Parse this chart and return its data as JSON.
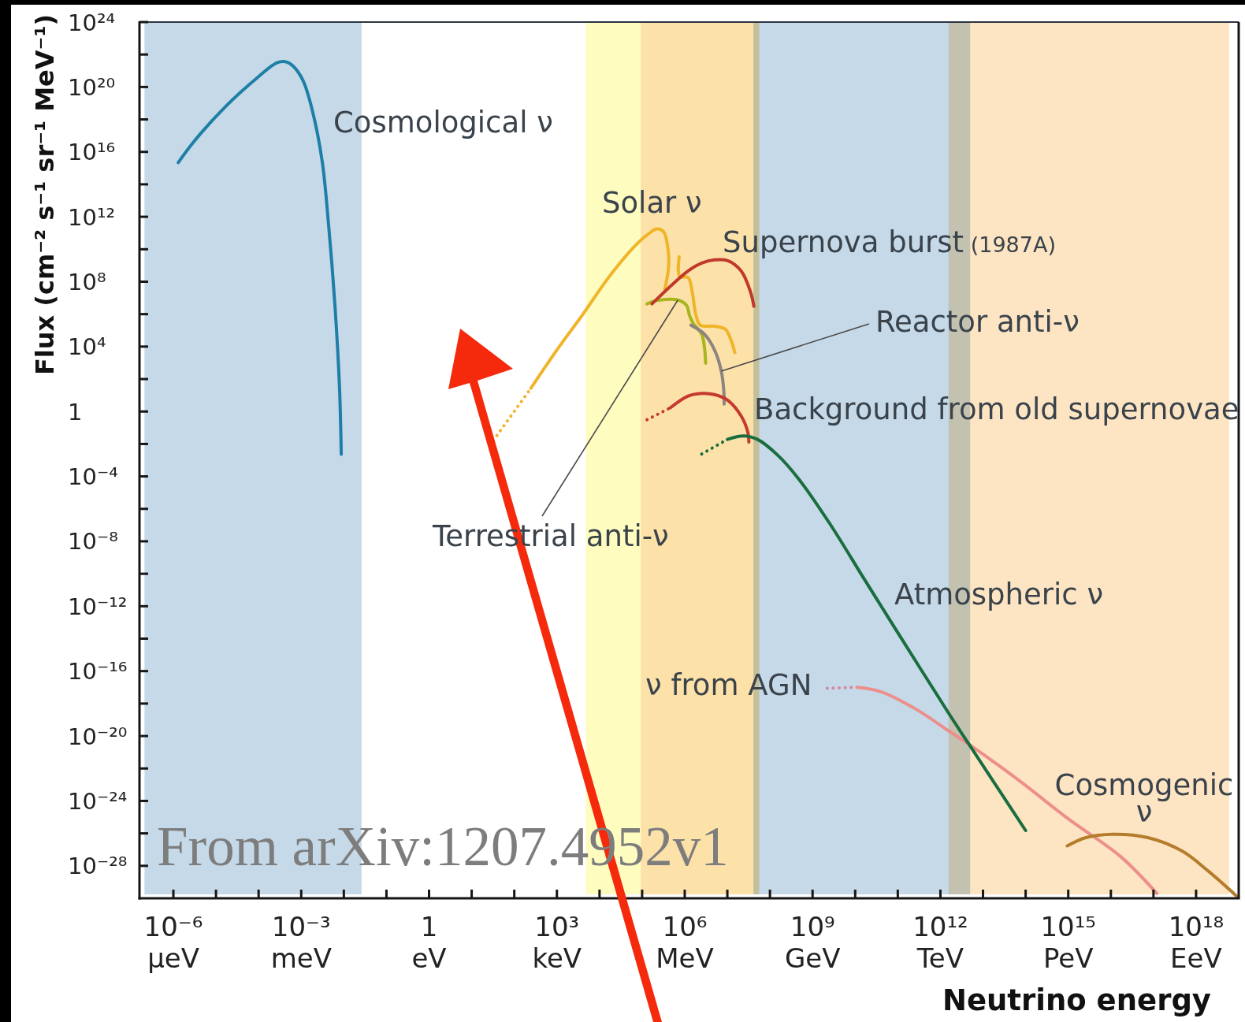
{
  "chart_data": {
    "type": "line",
    "xlabel": "Neutrino energy",
    "ylabel": "Flux (cm⁻² s⁻¹ sr⁻¹ MeV⁻¹)",
    "log": "xy",
    "xlim": [
      1.6e-07,
      1e+19
    ],
    "ylim": [
      1e-30,
      1e+24
    ],
    "xticks": [
      {
        "value": 1e-06,
        "label": "10⁻⁶"
      },
      {
        "value": 1e-05,
        "label": null
      },
      {
        "value": 0.0001,
        "label": null
      },
      {
        "value": 0.001,
        "label": "10⁻³"
      },
      {
        "value": 0.01,
        "label": null
      },
      {
        "value": 0.1,
        "label": null
      },
      1,
      {
        "value": 10,
        "label": null
      },
      {
        "value": 100,
        "label": null
      },
      {
        "value": 1000.0,
        "label": "10³"
      },
      {
        "value": 10000.0,
        "label": null
      },
      {
        "value": 100000.0,
        "label": null
      },
      {
        "value": 1000000.0,
        "label": "10⁶"
      },
      {
        "value": 10000000.0,
        "label": null
      },
      {
        "value": 100000000.0,
        "label": null
      },
      {
        "value": 1000000000.0,
        "label": "10⁹"
      },
      {
        "value": 10000000000.0,
        "label": null
      },
      {
        "value": 100000000000.0,
        "label": null
      },
      {
        "value": 1000000000000.0,
        "label": "10¹²"
      },
      {
        "value": 10000000000000.0,
        "label": null
      },
      {
        "value": 100000000000000.0,
        "label": null
      },
      {
        "value": 1000000000000000.0,
        "label": "10¹⁵"
      },
      {
        "value": 1e+16,
        "label": null
      },
      {
        "value": 1e+17,
        "label": null
      },
      {
        "value": 1e+18,
        "label": "10¹⁸"
      }
    ],
    "yticks": [
      {
        "value": 1e+24,
        "label": "10²⁴"
      },
      {
        "value": 1e+22,
        "label": null
      },
      {
        "value": 1e+20,
        "label": "10²⁰"
      },
      {
        "value": 1e+18,
        "label": null
      },
      {
        "value": 1e+16,
        "label": "10¹⁶"
      },
      {
        "value": 100000000000000.0,
        "label": null
      },
      {
        "value": 1000000000000.0,
        "label": "10¹²"
      },
      {
        "value": 10000000000.0,
        "label": null
      },
      {
        "value": 100000000.0,
        "label": "10⁸"
      },
      {
        "value": 1000000.0,
        "label": null
      },
      {
        "value": 10000.0,
        "label": "10⁴"
      },
      {
        "value": 100,
        "label": null
      },
      1,
      {
        "value": 0.01,
        "label": null
      },
      {
        "value": 0.0001,
        "label": "10⁻⁴"
      },
      {
        "value": 1e-06,
        "label": null
      },
      {
        "value": 1e-08,
        "label": "10⁻⁸"
      },
      {
        "value": 1e-10,
        "label": null
      },
      {
        "value": 1e-12,
        "label": "10⁻¹²"
      },
      {
        "value": 1e-14,
        "label": null
      },
      {
        "value": 1e-16,
        "label": "10⁻¹⁶"
      },
      {
        "value": 1e-18,
        "label": null
      },
      {
        "value": 1e-20,
        "label": "10⁻²⁰"
      },
      {
        "value": 1e-22,
        "label": null
      },
      {
        "value": 1e-24,
        "label": "10⁻²⁴"
      },
      {
        "value": 1e-26,
        "label": null
      },
      {
        "value": 1e-28,
        "label": "10⁻²⁸"
      }
    ],
    "bands": [
      {
        "axis": "x",
        "from": 2.1e-07,
        "to": 0.026,
        "color": "#c5d9e8"
      },
      {
        "axis": "x",
        "from": 4800,
        "to": 93000,
        "color": "#fefcbf"
      },
      {
        "axis": "x",
        "from": 93000,
        "to": 56000000.0,
        "color": "#fce1a9"
      },
      {
        "axis": "x",
        "from": 41000000.0,
        "to": 5000000000000.0,
        "color": "#c5d9e8"
      },
      {
        "axis": "x",
        "from": 1550000000000.0,
        "to": 6e+18,
        "color": "#fde4c3"
      }
    ],
    "annotations": [
      "From arXiv:1207.4952v1",
      "μeV",
      "meV",
      "eV",
      "keV",
      "MeV",
      "GeV",
      "TeV",
      "PeV",
      "EeV"
    ],
    "series": [
      {
        "name": "Cosmological ν",
        "color": "#1e7fa6",
        "x": [
          1.3e-06,
          3e-06,
          1.7e-05,
          9.5e-05,
          0.00027,
          0.00045,
          0.00065,
          0.0011,
          0.0018,
          0.0031,
          0.0044,
          0.0062,
          0.0079,
          0.0087
        ],
        "values": [
          2200000000000000.0,
          4.2e+16,
          6.5e+18,
          3.9e+20,
          3.1e+21,
          3.5e+21,
          1.9e+21,
          2.5e+20,
          4.1e+18,
          2700000000000000.0,
          290000000000.0,
          3100000.0,
          34,
          0.0023
        ]
      },
      {
        "color": "#f0b429",
        "line_style": "dotted",
        "x": [
          39,
          245
        ],
        "values": [
          0.033,
          27
        ]
      },
      {
        "name": "Solar ν",
        "color": "#f0b429",
        "x": [
          245,
          1000,
          4200,
          17000,
          72000,
          150000,
          220000,
          320000,
          400000,
          420000,
          340000,
          550000,
          740000,
          760000,
          1200000.0,
          1500000.0,
          1800000.0,
          2300000.0,
          5000000.0,
          8900000.0,
          12000000.0,
          15000000.0
        ],
        "values": [
          27,
          6200.0,
          1100000.0,
          210000000.0,
          19000000000.0,
          100000000000.0,
          180000000000.0,
          120000000000.0,
          13000000000.0,
          950000000.0,
          33000000.0,
          null,
          3500000000.0,
          210000000.0,
          180000000.0,
          23000000.0,
          1100000.0,
          210000.0,
          180000.0,
          120000.0,
          28000.0,
          4300.0
        ]
      },
      {
        "name": "Terrestrial anti-ν",
        "color": "#a9b51d",
        "x": [
          130000,
          220000,
          690000,
          1100000.0,
          1300000.0,
          1600000.0,
          2500000.0,
          2900000.0,
          3100000.0
        ],
        "values": [
          4300000.0,
          6900000.0,
          7400000.0,
          3500000.0,
          790000.0,
          260000.0,
          58000.0,
          8900.0,
          950
        ]
      },
      {
        "name": "Supernova burst (1987A)",
        "color": "#c0392b",
        "x": [
          170000,
          1200000.0,
          2500000.0,
          5000000.0,
          10000000.0,
          21000000.0,
          35000000.0,
          42000000.0
        ],
        "values": [
          4300000.0,
          460000000.0,
          1400000000.0,
          2200000000.0,
          2000000000.0,
          460000000.0,
          23000000.0,
          3000000.0
        ]
      },
      {
        "name": "Reactor anti-ν",
        "color": "#8d8580",
        "x": [
          1400000.0,
          2900000.0,
          5000000.0,
          7200000.0,
          8300000.0,
          8400000.0
        ],
        "values": [
          210000.0,
          58000.0,
          6200.0,
          310,
          15,
          2.9
        ]
      },
      {
        "color": "#c53a2f",
        "line_style": "dotted",
        "x": [
          130000,
          460000
        ],
        "values": [
          0.31,
          1.7
        ]
      },
      {
        "name": "Background from old supernovae",
        "color": "#c53a2f",
        "x": [
          460000,
          1200000.0,
          2500000.0,
          5000000.0,
          10000000.0,
          21000000.0,
          30000000.0,
          32000000.0
        ],
        "values": [
          1.7,
          8.9,
          13,
          11,
          5.1,
          0.54,
          0.057,
          0.013
        ]
      },
      {
        "color": "#d389a2",
        "line_style": "dotted",
        "x": [
          2200000000.0,
          11000000000.0
        ],
        "values": [
          8.7e-18,
          1e-17
        ]
      },
      {
        "name": "ν from AGN",
        "color": "#ec8f8b",
        "x": [
          11000000000.0,
          40000000000.0,
          260000000000.0,
          1600000000000.0,
          4900000000000.0,
          65000000000000.0,
          1000000000000000.0,
          1.7e+16,
          1.2e+17
        ],
        "values": [
          1e-17,
          5.4e-18,
          4.7e-19,
          2e-20,
          2.8e-21,
          2.1e-23,
          7.9e-26,
          3.7e-28,
          2e-30
        ]
      },
      {
        "color": "#1a6d3f",
        "line_style": "dotted",
        "x": [
          2500000.0,
          10000000.0
        ],
        "values": [
          0.0024,
          0.019
        ]
      },
      {
        "name": "Atmospheric ν",
        "color": "#1a6d3f",
        "x": [
          10000000.0,
          24000000.0,
          51000000.0,
          150000000.0,
          470000000.0,
          2500000000.0,
          16000000000.0,
          91000000000.0,
          1600000000000.0,
          4800000000000.0,
          100000000000000.0
        ],
        "values": [
          0.019,
          0.031,
          0.019,
          0.0021,
          7.1e-05,
          1.3e-07,
          5.1e-11,
          3.5e-14,
          2.3e-19,
          2.8e-21,
          1.5e-26
        ]
      },
      {
        "name": "Cosmogenic ν",
        "color": "#b47d2b",
        "x": [
          950000000000000.0,
          2600000000000000.0,
          1.1e+16,
          7.4e+16,
          4.7e+17,
          2e+18,
          9.1e+18
        ],
        "values": [
          1.7e-27,
          5.5e-27,
          8.9e-27,
          5.5e-27,
          8.1e-28,
          4.4e-29,
          1.3e-30
        ]
      }
    ]
  }
}
